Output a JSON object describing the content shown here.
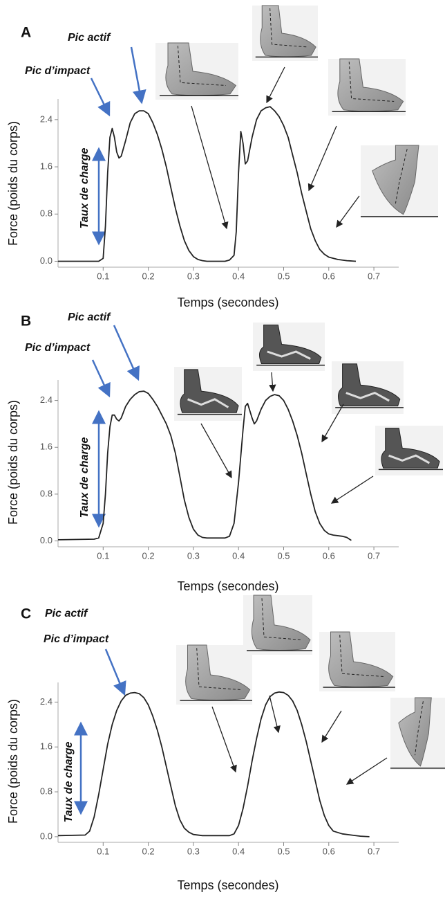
{
  "chart_data": [
    {
      "type": "line",
      "label": "A",
      "annotations": [
        "Pic actif",
        "Pic d’impact",
        "Taux de charge"
      ],
      "xlabel": "Temps (secondes)",
      "ylabel": "Force (poids du corps)",
      "color": "#222222",
      "xlim": [
        0,
        0.755
      ],
      "ylim": [
        -0.1,
        2.75
      ],
      "xticks": [
        0.1,
        0.2,
        0.3,
        0.4,
        0.5,
        0.6,
        0.7
      ],
      "yticks": [
        {
          "value": 0,
          "label": "0.0"
        },
        0.8,
        1.6,
        2.4
      ],
      "x": [
        0,
        0.09,
        0.1,
        0.105,
        0.11,
        0.115,
        0.12,
        0.125,
        0.13,
        0.135,
        0.14,
        0.15,
        0.16,
        0.17,
        0.18,
        0.19,
        0.2,
        0.21,
        0.22,
        0.23,
        0.24,
        0.25,
        0.26,
        0.27,
        0.28,
        0.29,
        0.3,
        0.31,
        0.32,
        0.33,
        0.37,
        0.38,
        0.39,
        0.395,
        0.4,
        0.405,
        0.41,
        0.415,
        0.42,
        0.43,
        0.44,
        0.45,
        0.46,
        0.47,
        0.48,
        0.49,
        0.5,
        0.51,
        0.52,
        0.53,
        0.54,
        0.55,
        0.56,
        0.57,
        0.58,
        0.59,
        0.6,
        0.62,
        0.64,
        0.66
      ],
      "values": [
        0,
        0,
        0.05,
        0.6,
        1.5,
        2.1,
        2.25,
        2.1,
        1.85,
        1.75,
        1.78,
        2.05,
        2.35,
        2.5,
        2.55,
        2.55,
        2.5,
        2.35,
        2.15,
        1.9,
        1.6,
        1.25,
        0.9,
        0.6,
        0.35,
        0.18,
        0.08,
        0.03,
        0.01,
        0,
        0,
        0.02,
        0.1,
        0.5,
        1.5,
        2.2,
        2.0,
        1.65,
        1.7,
        2.1,
        2.4,
        2.55,
        2.6,
        2.62,
        2.55,
        2.45,
        2.3,
        2.1,
        1.8,
        1.5,
        1.15,
        0.85,
        0.55,
        0.35,
        0.2,
        0.12,
        0.07,
        0.03,
        0.01,
        0
      ]
    },
    {
      "type": "line",
      "label": "B",
      "annotations": [
        "Pic actif",
        "Pic d’impact",
        "Taux de charge"
      ],
      "xlabel": "Temps (secondes)",
      "ylabel": "Force (poids du corps)",
      "color": "#222222",
      "xlim": [
        0,
        0.755
      ],
      "ylim": [
        -0.1,
        2.75
      ],
      "xticks": [
        0.1,
        0.2,
        0.3,
        0.4,
        0.5,
        0.6,
        0.7
      ],
      "yticks": [
        {
          "value": 0,
          "label": "0.0"
        },
        0.8,
        1.6,
        2.4
      ],
      "x": [
        0,
        0.08,
        0.09,
        0.1,
        0.105,
        0.11,
        0.115,
        0.12,
        0.125,
        0.13,
        0.135,
        0.14,
        0.15,
        0.16,
        0.17,
        0.18,
        0.19,
        0.2,
        0.21,
        0.22,
        0.23,
        0.24,
        0.25,
        0.26,
        0.27,
        0.28,
        0.29,
        0.3,
        0.31,
        0.32,
        0.33,
        0.37,
        0.38,
        0.39,
        0.4,
        0.41,
        0.415,
        0.42,
        0.43,
        0.435,
        0.44,
        0.45,
        0.46,
        0.47,
        0.48,
        0.49,
        0.5,
        0.51,
        0.52,
        0.53,
        0.54,
        0.55,
        0.56,
        0.57,
        0.58,
        0.59,
        0.6,
        0.61,
        0.63,
        0.64,
        0.65
      ],
      "values": [
        0.02,
        0.03,
        0.05,
        0.3,
        0.8,
        1.5,
        1.95,
        2.15,
        2.15,
        2.08,
        2.05,
        2.1,
        2.3,
        2.42,
        2.5,
        2.55,
        2.56,
        2.52,
        2.42,
        2.3,
        2.15,
        2.0,
        1.8,
        1.5,
        1.1,
        0.7,
        0.4,
        0.2,
        0.1,
        0.06,
        0.05,
        0.05,
        0.08,
        0.3,
        1.0,
        1.9,
        2.3,
        2.35,
        2.1,
        2.0,
        2.05,
        2.25,
        2.4,
        2.47,
        2.5,
        2.48,
        2.4,
        2.25,
        2.05,
        1.8,
        1.5,
        1.15,
        0.8,
        0.5,
        0.3,
        0.18,
        0.12,
        0.1,
        0.08,
        0.06,
        0.01
      ]
    },
    {
      "type": "line",
      "label": "C",
      "annotations": [
        "Pic actif",
        "Pic d’impact",
        "Taux de charge"
      ],
      "xlabel": "Temps (secondes)",
      "ylabel": "Force (poids du corps)",
      "color": "#222222",
      "xlim": [
        0,
        0.755
      ],
      "ylim": [
        -0.1,
        2.75
      ],
      "xticks": [
        0.1,
        0.2,
        0.3,
        0.4,
        0.5,
        0.6,
        0.7
      ],
      "yticks": [
        {
          "value": 0,
          "label": "0.0"
        },
        0.8,
        1.6,
        2.4
      ],
      "x": [
        0,
        0.06,
        0.07,
        0.08,
        0.09,
        0.1,
        0.11,
        0.12,
        0.13,
        0.14,
        0.15,
        0.16,
        0.17,
        0.18,
        0.19,
        0.2,
        0.21,
        0.22,
        0.23,
        0.24,
        0.25,
        0.26,
        0.27,
        0.28,
        0.29,
        0.3,
        0.32,
        0.38,
        0.39,
        0.4,
        0.41,
        0.42,
        0.43,
        0.44,
        0.45,
        0.46,
        0.47,
        0.48,
        0.49,
        0.5,
        0.51,
        0.52,
        0.53,
        0.54,
        0.55,
        0.56,
        0.57,
        0.58,
        0.59,
        0.6,
        0.61,
        0.63,
        0.65,
        0.67,
        0.69
      ],
      "values": [
        0.02,
        0.03,
        0.1,
        0.35,
        0.75,
        1.2,
        1.65,
        2.0,
        2.25,
        2.42,
        2.52,
        2.56,
        2.57,
        2.55,
        2.48,
        2.35,
        2.15,
        1.9,
        1.6,
        1.25,
        0.9,
        0.55,
        0.3,
        0.15,
        0.08,
        0.04,
        0.02,
        0.02,
        0.05,
        0.2,
        0.5,
        0.9,
        1.35,
        1.75,
        2.1,
        2.35,
        2.5,
        2.56,
        2.58,
        2.57,
        2.52,
        2.42,
        2.25,
        2.0,
        1.7,
        1.35,
        1.0,
        0.65,
        0.38,
        0.2,
        0.1,
        0.05,
        0.03,
        0.01,
        0
      ]
    }
  ]
}
